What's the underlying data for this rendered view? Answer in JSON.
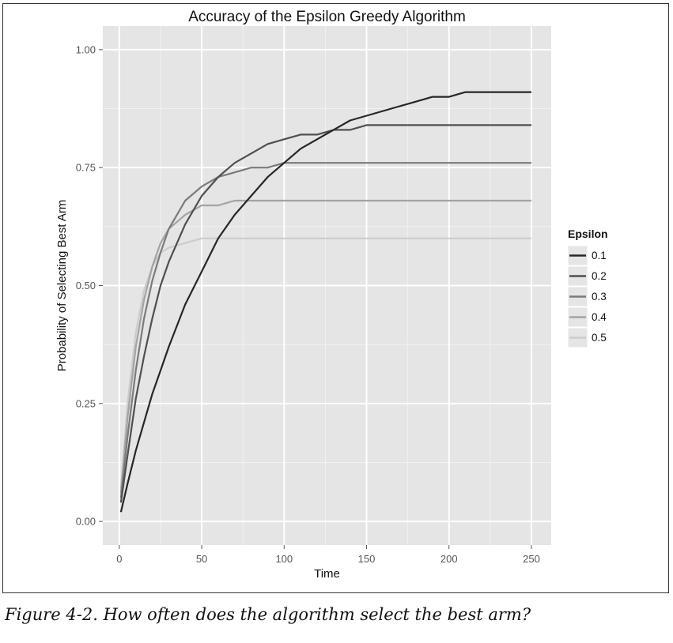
{
  "chart_data": {
    "type": "line",
    "title": "Accuracy of the Epsilon Greedy Algorithm",
    "xlabel": "Time",
    "ylabel": "Probability of Selecting Best Arm",
    "xlim": [
      -10,
      262
    ],
    "ylim": [
      -0.05,
      1.05
    ],
    "x_ticks": [
      0,
      50,
      100,
      150,
      200,
      250
    ],
    "y_ticks": [
      0.0,
      0.25,
      0.5,
      0.75,
      1.0
    ],
    "x_tick_labels": [
      "0",
      "50",
      "100",
      "150",
      "200",
      "250"
    ],
    "y_tick_labels": [
      "0.00",
      "0.25",
      "0.50",
      "0.75",
      "1.00"
    ],
    "grid": true,
    "legend_title": "Epsilon",
    "legend_position": "right",
    "x": [
      1,
      5,
      10,
      15,
      20,
      25,
      30,
      40,
      50,
      60,
      70,
      80,
      90,
      100,
      110,
      120,
      130,
      140,
      150,
      160,
      170,
      180,
      190,
      200,
      210,
      220,
      230,
      240,
      250
    ],
    "series": [
      {
        "name": "0.1",
        "color": "#262626",
        "values": [
          0.02,
          0.08,
          0.15,
          0.21,
          0.27,
          0.32,
          0.37,
          0.46,
          0.53,
          0.6,
          0.65,
          0.69,
          0.73,
          0.76,
          0.79,
          0.81,
          0.83,
          0.85,
          0.86,
          0.87,
          0.88,
          0.89,
          0.9,
          0.9,
          0.91,
          0.91,
          0.91,
          0.91,
          0.91
        ]
      },
      {
        "name": "0.2",
        "color": "#4f4f4f",
        "values": [
          0.04,
          0.14,
          0.26,
          0.35,
          0.43,
          0.5,
          0.55,
          0.63,
          0.69,
          0.73,
          0.76,
          0.78,
          0.8,
          0.81,
          0.82,
          0.82,
          0.83,
          0.83,
          0.84,
          0.84,
          0.84,
          0.84,
          0.84,
          0.84,
          0.84,
          0.84,
          0.84,
          0.84,
          0.84
        ]
      },
      {
        "name": "0.3",
        "color": "#7a7a7a",
        "values": [
          0.05,
          0.18,
          0.32,
          0.43,
          0.51,
          0.57,
          0.62,
          0.68,
          0.71,
          0.73,
          0.74,
          0.75,
          0.75,
          0.76,
          0.76,
          0.76,
          0.76,
          0.76,
          0.76,
          0.76,
          0.76,
          0.76,
          0.76,
          0.76,
          0.76,
          0.76,
          0.76,
          0.76,
          0.76
        ]
      },
      {
        "name": "0.4",
        "color": "#a3a3a3",
        "values": [
          0.06,
          0.22,
          0.37,
          0.47,
          0.54,
          0.59,
          0.62,
          0.65,
          0.67,
          0.67,
          0.68,
          0.68,
          0.68,
          0.68,
          0.68,
          0.68,
          0.68,
          0.68,
          0.68,
          0.68,
          0.68,
          0.68,
          0.68,
          0.68,
          0.68,
          0.68,
          0.68,
          0.68,
          0.68
        ]
      },
      {
        "name": "0.5",
        "color": "#cccccc",
        "values": [
          0.07,
          0.25,
          0.4,
          0.49,
          0.54,
          0.57,
          0.58,
          0.59,
          0.6,
          0.6,
          0.6,
          0.6,
          0.6,
          0.6,
          0.6,
          0.6,
          0.6,
          0.6,
          0.6,
          0.6,
          0.6,
          0.6,
          0.6,
          0.6,
          0.6,
          0.6,
          0.6,
          0.6,
          0.6
        ]
      }
    ],
    "colors": {
      "panel": "#e5e5e5",
      "grid": "#ffffff",
      "tick": "#555555",
      "text": "#111111"
    }
  },
  "caption": "Figure 4-2. How often does the algorithm select the best arm?"
}
